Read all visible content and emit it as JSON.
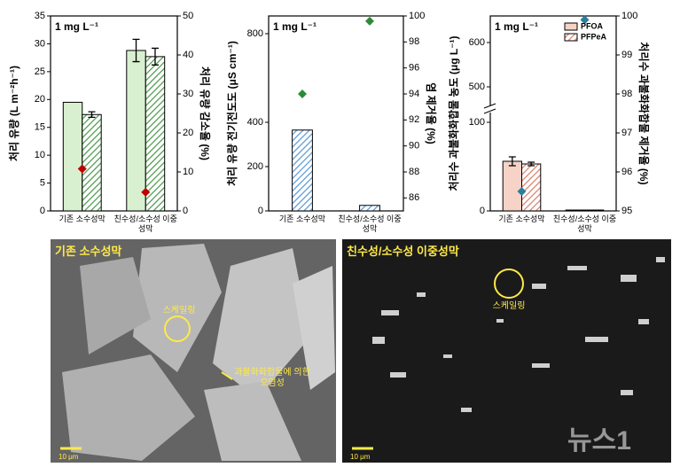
{
  "chart_data": [
    {
      "type": "bar",
      "annotation": "1 mg L⁻¹",
      "ylabel": "처리 유량 (L m⁻²h⁻¹)",
      "y2label": "처리 유량 감소율 (%)",
      "y2label_color": "#c00000",
      "categories": [
        "기존 소수성막",
        "친수성/소수성 이중성막"
      ],
      "ylim": [
        0,
        35
      ],
      "yticks": [
        0,
        5,
        10,
        15,
        20,
        25,
        30,
        35
      ],
      "y2lim": [
        0,
        50
      ],
      "y2ticks": [
        0,
        10,
        20,
        30,
        40,
        50
      ],
      "series": [
        {
          "kind": "bar",
          "color": "#d8f0cf",
          "hatch": false,
          "values": [
            19.5,
            28.8
          ],
          "errors": [
            null,
            2
          ]
        },
        {
          "kind": "bar",
          "color": "#4f9a4f",
          "hatch": true,
          "values": [
            17.3,
            27.7
          ],
          "errors": [
            0.5,
            1.5
          ]
        },
        {
          "kind": "marker",
          "axis": "y2",
          "color": "#c00000",
          "values": [
            10.8,
            4.8
          ]
        }
      ]
    },
    {
      "type": "bar",
      "annotation": "1 mg L⁻¹",
      "ylabel": "처리 유량 전기전도도 (μS cm⁻¹)",
      "y2label": "염 제거율 (%)",
      "y2label_color": "#2e8b3a",
      "categories": [
        "기존 소수성막",
        "친수성/소수성 이중성막"
      ],
      "ylim": [
        0,
        880
      ],
      "yticks": [
        0,
        200,
        400,
        800
      ],
      "y2lim": [
        85,
        100
      ],
      "y2ticks": [
        86,
        88,
        90,
        92,
        94,
        96,
        98,
        100
      ],
      "series": [
        {
          "kind": "bar",
          "color": "#5b9bd5",
          "hatch": true,
          "values": [
            365,
            25
          ]
        },
        {
          "kind": "marker",
          "axis": "y2",
          "color": "#2e8b3a",
          "values": [
            94,
            99.6
          ]
        }
      ]
    },
    {
      "type": "bar",
      "annotation": "1 mg L⁻¹",
      "ylabel": "처리수 과불화화합물 농도 (μg L⁻¹)",
      "y2label": "처리수 과불화화합물 제거율 (%)",
      "y2label_color": "#2a7f9e",
      "categories": [
        "기존 소수성막",
        "친수성/소수성 이중성막"
      ],
      "legend": "upper right",
      "ylim": [
        0,
        660
      ],
      "ybreak": [
        110,
        460
      ],
      "yticks": [
        0,
        100,
        500,
        600
      ],
      "y2lim": [
        95,
        100
      ],
      "y2ticks": [
        95,
        96,
        97,
        98,
        99,
        100
      ],
      "series": [
        {
          "name": "PFOA",
          "kind": "bar",
          "color": "#f6d3c6",
          "hatch": false,
          "values": [
            56,
            1
          ],
          "errors": [
            5,
            null
          ]
        },
        {
          "name": "PFPeA",
          "kind": "bar",
          "color": "#d9826a",
          "hatch": true,
          "values": [
            53,
            1
          ],
          "errors": [
            2,
            null
          ]
        },
        {
          "kind": "marker",
          "axis": "y2",
          "color": "#2a7f9e",
          "values": [
            95.5,
            99.9
          ]
        }
      ]
    }
  ],
  "images": [
    {
      "label": "기존 소수성막",
      "annotations": [
        "스케일링",
        "과불화화합물에 의한 오염성"
      ],
      "scale_bar": "10 μm"
    },
    {
      "label": "친수성/소수성 이중성막",
      "annotations": [
        "스케일링"
      ],
      "scale_bar": "10 μm"
    }
  ],
  "watermark": "뉴스1"
}
